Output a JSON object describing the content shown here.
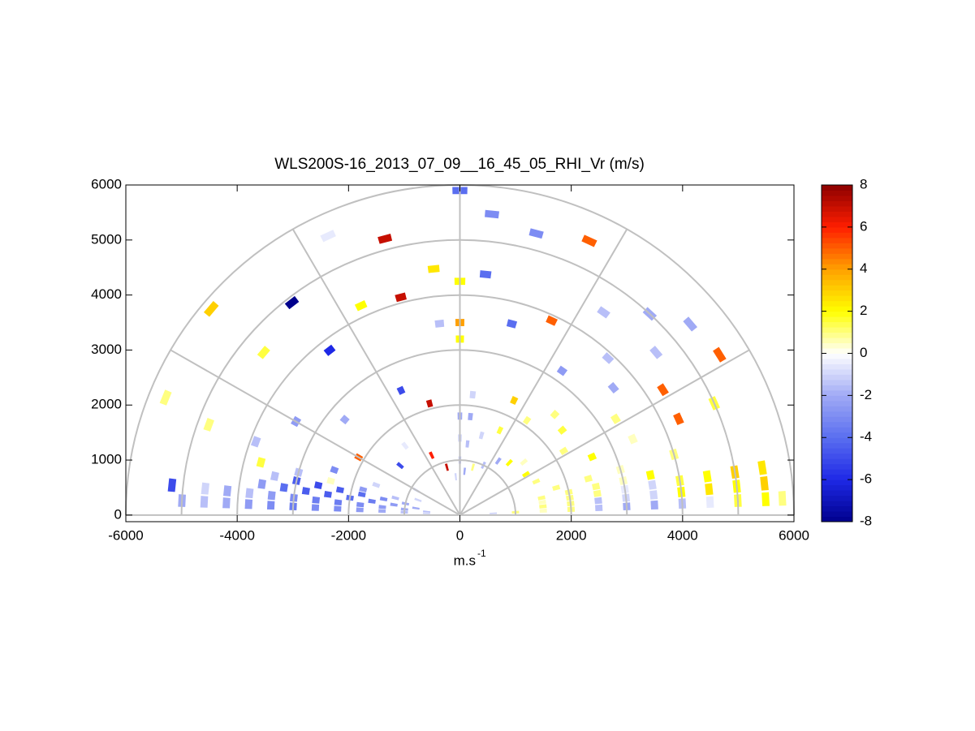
{
  "chart_data": {
    "type": "rhi",
    "title": "WLS200S-16_2013_07_09__16_45_05_RHI_Vr (m/s)",
    "xlabel": {
      "text": "m.s",
      "superscript": "-1"
    },
    "xlim": [
      -6000,
      6000
    ],
    "ylim": [
      -120,
      6000
    ],
    "xticks": [
      -6000,
      -4000,
      -2000,
      0,
      2000,
      4000,
      6000
    ],
    "yticks": [
      0,
      1000,
      2000,
      3000,
      4000,
      5000,
      6000
    ],
    "rings": [
      1000,
      2000,
      3000,
      4000,
      5000,
      6000
    ],
    "spokes": [
      0,
      30,
      60,
      90,
      120,
      150,
      180
    ],
    "clim": [
      -8,
      8
    ],
    "cticks": [
      -8,
      -6,
      -4,
      -2,
      0,
      2,
      4,
      6,
      8
    ],
    "colormap": [
      "#00008c",
      "#1e28e6",
      "#5a6ef0",
      "#a0aaf5",
      "#ffffff",
      "#ffff00",
      "#ffa000",
      "#ff1e00",
      "#8c0000"
    ],
    "beams": [
      {
        "elevation": 177,
        "ranges": [
          600,
          1000,
          1400,
          1800,
          2200,
          2600,
          3000,
          3400,
          3800,
          4200,
          4600,
          5000
        ],
        "values": [
          -1,
          -1.5,
          -2,
          -2.5,
          -3,
          -3,
          -3.5,
          -3,
          -2.5,
          -2,
          -1.5,
          -2
        ]
      },
      {
        "elevation": 174,
        "ranges": [
          600,
          1000,
          1400,
          1800,
          2200,
          2600,
          3000,
          3400,
          3800,
          4200,
          4600,
          5200
        ],
        "values": [
          -1.5,
          -2,
          -2.5,
          -3,
          -3.5,
          -3.5,
          -3,
          -2.5,
          -1.5,
          -2,
          -1,
          -5
        ]
      },
      {
        "elevation": 171,
        "ranges": [
          800,
          1200,
          1600,
          2000,
          2400,
          2800,
          3200,
          3600
        ],
        "values": [
          -2,
          -2.5,
          -3.5,
          -4,
          -4.5,
          -4.5,
          -4,
          -2.5
        ]
      },
      {
        "elevation": 168,
        "ranges": [
          1000,
          1400,
          1800,
          2200,
          2600,
          3000,
          3400
        ],
        "values": [
          -2,
          -3,
          -4,
          -4.5,
          -5,
          -4.5,
          -1.5
        ]
      },
      {
        "elevation": 165,
        "ranges": [
          1200,
          1800,
          2400,
          3000,
          3700
        ],
        "values": [
          -1.5,
          -2.5,
          0.5,
          -1.5,
          1.5
        ]
      },
      {
        "elevation": 160,
        "ranges": [
          800,
          1600,
          2400,
          3900,
          4800
        ],
        "values": [
          -1,
          -1,
          -3,
          -1.5,
          1
        ]
      },
      {
        "elevation": 158,
        "ranges": [
          5700
        ],
        "values": [
          1
        ]
      },
      {
        "elevation": 150,
        "ranges": [
          900,
          2100,
          3400
        ],
        "values": [
          -1,
          5,
          -2.5
        ]
      },
      {
        "elevation": 140,
        "ranges": [
          1400,
          2700,
          4600,
          5830
        ],
        "values": [
          -5,
          -2,
          1.5,
          3
        ]
      },
      {
        "elevation": 128,
        "ranges": [
          1600,
          3800,
          4900
        ],
        "values": [
          -0.5,
          -6,
          -8
        ]
      },
      {
        "elevation": 115,
        "ranges": [
          1200,
          2500,
          4200,
          5600
        ],
        "values": [
          6,
          -5,
          2,
          -0.5
        ]
      },
      {
        "elevation": 105,
        "ranges": [
          900,
          2100,
          4100,
          5200
        ],
        "values": [
          7,
          7,
          7,
          7
        ]
      },
      {
        "elevation": 96,
        "ranges": [
          700,
          3500,
          4500
        ],
        "values": [
          -1,
          -1.5,
          2.5
        ]
      },
      {
        "elevation": 90,
        "ranges": [
          600,
          1000,
          1400,
          1800,
          3200,
          3500,
          4250,
          5900
        ],
        "values": [
          -1,
          -1.5,
          -1,
          -2,
          2,
          4,
          2,
          -4
        ]
      },
      {
        "elevation": 84,
        "ranges": [
          800,
          1300,
          1800,
          2200,
          4400,
          5500
        ],
        "values": [
          -2,
          -1.5,
          -2,
          -1,
          -4,
          -3
        ]
      },
      {
        "elevation": 75,
        "ranges": [
          900,
          1500,
          3600,
          5300
        ],
        "values": [
          1,
          -1,
          -4,
          -3
        ]
      },
      {
        "elevation": 65,
        "ranges": [
          1000,
          1700,
          2300,
          3900,
          5500
        ],
        "values": [
          -1.5,
          1.5,
          3,
          5,
          5
        ]
      },
      {
        "elevation": 55,
        "ranges": [
          1200,
          2100,
          3200,
          4500
        ],
        "values": [
          -2,
          1,
          -2.5,
          -1.5
        ]
      },
      {
        "elevation": 47,
        "ranges": [
          1300,
          2500,
          3900,
          5000
        ],
        "values": [
          2,
          1,
          -1.5,
          -2
        ]
      },
      {
        "elevation": 40,
        "ranges": [
          1500,
          2400,
          3600,
          4600,
          5400
        ],
        "values": [
          0.5,
          1.5,
          -2,
          -1.5,
          -2
        ]
      },
      {
        "elevation": 32,
        "ranges": [
          1400,
          2200,
          3300,
          4300,
          5500
        ],
        "values": [
          2,
          1,
          1,
          5,
          5
        ]
      },
      {
        "elevation": 24,
        "ranges": [
          1500,
          2600,
          3400,
          4300,
          5000
        ],
        "values": [
          1,
          2,
          0.5,
          5,
          1.5
        ]
      },
      {
        "elevation": 16,
        "ranges": [
          1800,
          2400,
          3000,
          4000
        ],
        "values": [
          1,
          1,
          0.5,
          1
        ]
      },
      {
        "elevation": 12,
        "ranges": [
          1500,
          2000,
          2500,
          3000,
          3500
        ],
        "values": [
          1,
          1,
          1,
          0.5,
          2
        ]
      },
      {
        "elevation": 9,
        "ranges": [
          1500,
          2000,
          2500,
          3000,
          3500,
          4000,
          4500,
          5000,
          5500
        ],
        "values": [
          0.5,
          1,
          1,
          -0.5,
          -1,
          1.5,
          2,
          3,
          2.5
        ]
      },
      {
        "elevation": 6,
        "ranges": [
          1500,
          2000,
          2500,
          3000,
          3500,
          4000,
          4500,
          5000,
          5500
        ],
        "values": [
          1,
          1,
          -1.5,
          -1,
          -1,
          2,
          2.5,
          2,
          3
        ]
      },
      {
        "elevation": 3,
        "ranges": [
          600,
          1000,
          1500,
          2000,
          2500,
          3000,
          3500,
          4000,
          4500,
          5000,
          5500,
          5800
        ],
        "values": [
          -1,
          1,
          0.5,
          1,
          -1.5,
          -2,
          -2,
          -1.5,
          -0.5,
          1.5,
          2,
          1
        ]
      }
    ]
  }
}
